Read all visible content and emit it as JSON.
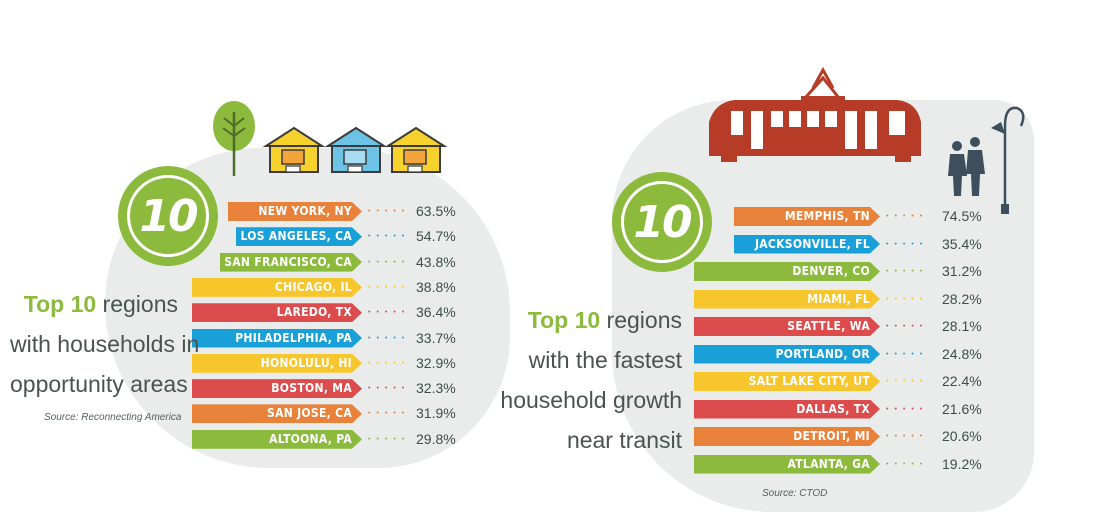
{
  "colors": {
    "green": "#8cba3c",
    "blue": "#1aa0d8",
    "orange": "#e8823a",
    "yellow": "#f7c52c",
    "red": "#dc4c4c",
    "tram": "#b63c27",
    "figure": "#3d4e5c"
  },
  "chart_data": [
    {
      "type": "bar",
      "badge_number": "10",
      "caption_highlight": "Top 10",
      "caption_rest_1": " regions",
      "caption_line_2": "with households in",
      "caption_line_3": "opportunity areas",
      "source": "Source: Reconnecting America",
      "categories": [
        "NEW YORK, NY",
        "LOS ANGELES, CA",
        "SAN FRANCISCO, CA",
        "CHICAGO, IL",
        "LAREDO, TX",
        "PHILADELPHIA, PA",
        "HONOLULU, HI",
        "BOSTON, MA",
        "SAN JOSE, CA",
        "ALTOONA, PA"
      ],
      "values": [
        63.5,
        54.7,
        43.8,
        38.8,
        36.4,
        33.7,
        32.9,
        32.3,
        31.9,
        29.8
      ],
      "labels": [
        "63.5%",
        "54.7%",
        "43.8%",
        "38.8%",
        "36.4%",
        "33.7%",
        "32.9%",
        "32.3%",
        "31.9%",
        "29.8%"
      ],
      "bar_colors": [
        "orange",
        "blue",
        "green",
        "yellow",
        "red",
        "blue",
        "yellow",
        "red",
        "orange",
        "green"
      ],
      "icons": [
        "tree-icon",
        "house-icon",
        "house-icon",
        "house-icon"
      ]
    },
    {
      "type": "bar",
      "badge_number": "10",
      "caption_highlight": "Top 10",
      "caption_rest_1": " regions",
      "caption_line_2": "with the fastest",
      "caption_line_3": "household growth",
      "caption_line_4": "near transit",
      "source": "Source: CTOD",
      "categories": [
        "MEMPHIS, TN",
        "JACKSONVILLE, FL",
        "DENVER, CO",
        "MIAMI, FL",
        "SEATTLE, WA",
        "PORTLAND, OR",
        "SALT LAKE CITY, UT",
        "DALLAS, TX",
        "DETROIT, MI",
        "ATLANTA, GA"
      ],
      "values": [
        74.5,
        35.4,
        31.2,
        28.2,
        28.1,
        24.8,
        22.4,
        21.6,
        20.6,
        19.2
      ],
      "labels": [
        "74.5%",
        "35.4%",
        "31.2%",
        "28.2%",
        "28.1%",
        "24.8%",
        "22.4%",
        "21.6%",
        "20.6%",
        "19.2%"
      ],
      "bar_colors": [
        "orange",
        "blue",
        "green",
        "yellow",
        "red",
        "blue",
        "yellow",
        "red",
        "orange",
        "green"
      ],
      "icons": [
        "tram-icon",
        "people-icon",
        "street-lamp-icon"
      ]
    }
  ]
}
